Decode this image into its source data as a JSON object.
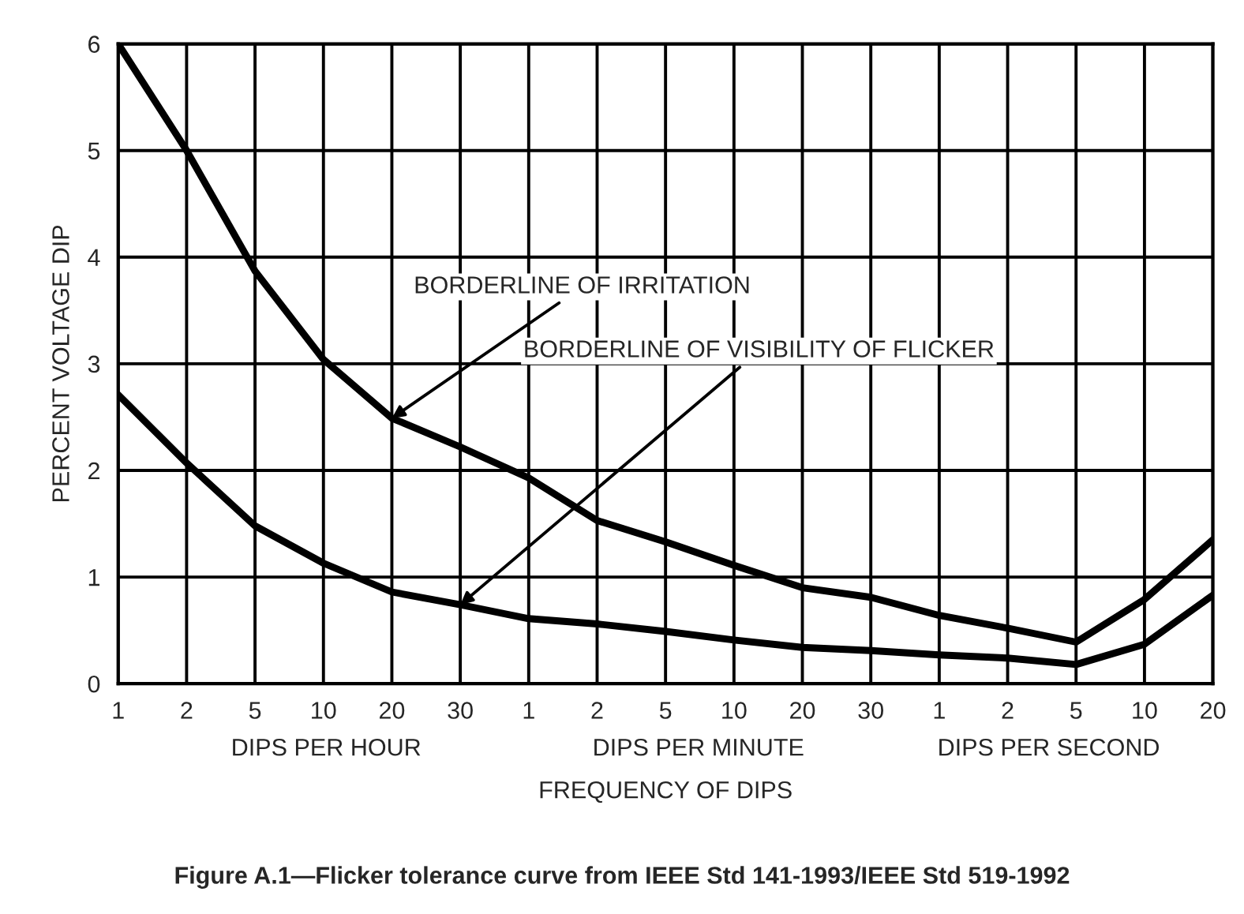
{
  "chart_data": {
    "type": "line",
    "xlabel": "FREQUENCY OF DIPS",
    "ylabel": "PERCENT VOLTAGE DIP",
    "categories": [
      "1",
      "2",
      "5",
      "10",
      "20",
      "30",
      "1",
      "2",
      "5",
      "10",
      "20",
      "30",
      "1",
      "2",
      "5",
      "10",
      "20"
    ],
    "series": [
      {
        "color": "#000000",
        "values": [
          6.0,
          5.0,
          3.87,
          3.04,
          2.49,
          2.22,
          1.93,
          1.53,
          1.33,
          1.11,
          0.9,
          0.81,
          0.64,
          0.52,
          0.39,
          0.79,
          1.35
        ]
      },
      {
        "color": "#000000",
        "values": [
          2.71,
          2.07,
          1.48,
          1.13,
          0.86,
          0.74,
          0.61,
          0.56,
          0.49,
          0.41,
          0.34,
          0.31,
          0.27,
          0.24,
          0.18,
          0.37,
          0.83
        ]
      }
    ],
    "ylim": [
      0,
      6
    ],
    "yticks": [
      0,
      1,
      2,
      3,
      4,
      5,
      6
    ],
    "grid": true,
    "marker": "none",
    "line_style": "solid",
    "annotations": [
      {
        "text": "BORDERLINE OF IRRITATION",
        "x": "20",
        "y": 2.49
      },
      {
        "text": "BORDERLINE OF VISIBILITY OF FLICKER",
        "x": "30",
        "y": 0.74
      },
      "DIPS PER HOUR",
      "DIPS PER MINUTE",
      "DIPS PER SECOND",
      "Figure A.1—Flicker tolerance curve from IEEE Std 141-1993/IEEE Std 519-1992"
    ]
  }
}
